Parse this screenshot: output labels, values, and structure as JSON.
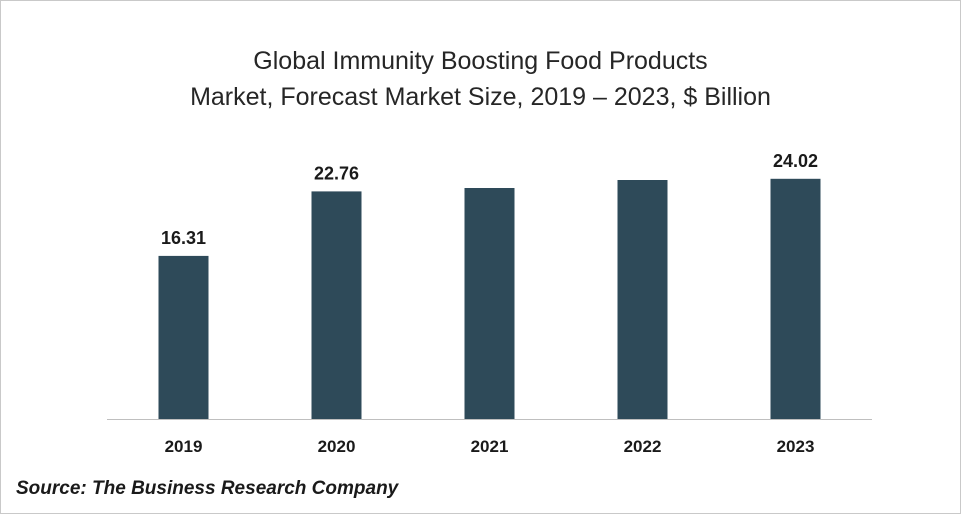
{
  "chart_data": {
    "type": "bar",
    "title_line1": "Global Immunity Boosting Food Products",
    "title_line2": "Market, Forecast Market Size, 2019 – 2023, $ Billion",
    "categories": [
      "2019",
      "2020",
      "2021",
      "2022",
      "2023"
    ],
    "values": [
      16.31,
      22.76,
      23.1,
      23.9,
      24.02
    ],
    "data_labels": [
      "16.31",
      "22.76",
      "",
      "",
      "24.02"
    ],
    "xlabel": "",
    "ylabel": "",
    "ylim": [
      0,
      26.5
    ],
    "grid": false,
    "legend": "none",
    "bar_color": "#2e4a59"
  },
  "source": "Source: The Business Research Company"
}
